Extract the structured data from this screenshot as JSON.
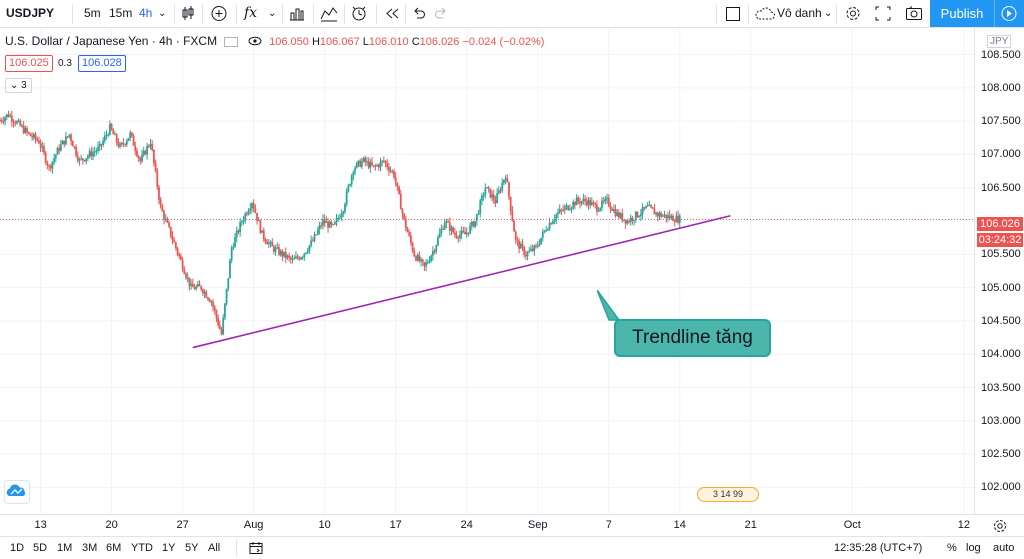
{
  "toolbar": {
    "symbol": "USDJPY",
    "timeframes": [
      "5m",
      "15m",
      "4h"
    ],
    "active_timeframe": "4h",
    "fx_label": "fx",
    "layout_name": "Vô danh",
    "publish_label": "Publish"
  },
  "legend": {
    "title": "U.S. Dollar / Japanese Yen · 4h · FXCM",
    "open_value": "106.050",
    "high_label": "H",
    "high_value": "106.067",
    "low_label": "L",
    "low_value": "106.010",
    "close_label": "C",
    "close_value": "106.026",
    "change": "−0.024 (−0.02%)",
    "bid": "106.025",
    "spread": "0.3",
    "ask": "106.028",
    "indicator_count": "3"
  },
  "price_axis": {
    "currency": "JPY",
    "labels": [
      "108.500",
      "108.000",
      "107.500",
      "107.000",
      "106.500",
      "105.500",
      "105.000",
      "104.500",
      "104.000",
      "103.500",
      "103.000",
      "102.500",
      "102.000"
    ],
    "current_price": "106.026",
    "countdown": "03:24:32"
  },
  "time_axis": {
    "labels": [
      "13",
      "20",
      "27",
      "Aug",
      "10",
      "17",
      "24",
      "Sep",
      "7",
      "14",
      "21",
      "Oct",
      "12"
    ]
  },
  "annotation": {
    "text": "Trendline tăng"
  },
  "news_badge": {
    "text": "3 14  99"
  },
  "bottom_bar": {
    "ranges": [
      "1D",
      "5D",
      "1M",
      "3M",
      "6M",
      "YTD",
      "1Y",
      "5Y",
      "All"
    ],
    "clock": "12:35:28 (UTC+7)",
    "percent_label": "%",
    "log_label": "log",
    "auto_label": "auto"
  },
  "colors": {
    "up": "#26a69a",
    "down": "#ef5350",
    "trendline": "#9c27b0",
    "accent": "#2196f3"
  },
  "chart_data": {
    "type": "candlestick",
    "ylim": [
      101.6,
      108.9
    ],
    "x_range": [
      "2020-07-09",
      "2020-10-13"
    ],
    "trendline": [
      {
        "date": "2020-07-28",
        "price": 104.1
      },
      {
        "date": "2020-09-19",
        "price": 106.08
      }
    ],
    "path_points": [
      {
        "date": "2020-07-09",
        "price": 107.5
      },
      {
        "date": "2020-07-10",
        "price": 107.6
      },
      {
        "date": "2020-07-12",
        "price": 107.3
      },
      {
        "date": "2020-07-13",
        "price": 107.2
      },
      {
        "date": "2020-07-14",
        "price": 106.8
      },
      {
        "date": "2020-07-15",
        "price": 107.1
      },
      {
        "date": "2020-07-16",
        "price": 107.3
      },
      {
        "date": "2020-07-17",
        "price": 106.9
      },
      {
        "date": "2020-07-19",
        "price": 107.1
      },
      {
        "date": "2020-07-20",
        "price": 107.4
      },
      {
        "date": "2020-07-21",
        "price": 107.1
      },
      {
        "date": "2020-07-22",
        "price": 107.3
      },
      {
        "date": "2020-07-23",
        "price": 106.9
      },
      {
        "date": "2020-07-24",
        "price": 107.2
      },
      {
        "date": "2020-07-25",
        "price": 106.2
      },
      {
        "date": "2020-07-26",
        "price": 105.8
      },
      {
        "date": "2020-07-27",
        "price": 105.4
      },
      {
        "date": "2020-07-28",
        "price": 105.0
      },
      {
        "date": "2020-07-29",
        "price": 105.0
      },
      {
        "date": "2020-07-30",
        "price": 104.8
      },
      {
        "date": "2020-07-31",
        "price": 104.3
      },
      {
        "date": "2020-08-01",
        "price": 105.6
      },
      {
        "date": "2020-08-02",
        "price": 106.0
      },
      {
        "date": "2020-08-03",
        "price": 106.3
      },
      {
        "date": "2020-08-04",
        "price": 105.8
      },
      {
        "date": "2020-08-05",
        "price": 105.6
      },
      {
        "date": "2020-08-06",
        "price": 105.5
      },
      {
        "date": "2020-08-07",
        "price": 105.4
      },
      {
        "date": "2020-08-08",
        "price": 105.5
      },
      {
        "date": "2020-08-09",
        "price": 105.7
      },
      {
        "date": "2020-08-10",
        "price": 106.0
      },
      {
        "date": "2020-08-11",
        "price": 105.9
      },
      {
        "date": "2020-08-12",
        "price": 106.2
      },
      {
        "date": "2020-08-13",
        "price": 106.8
      },
      {
        "date": "2020-08-14",
        "price": 106.9
      },
      {
        "date": "2020-08-15",
        "price": 106.8
      },
      {
        "date": "2020-08-16",
        "price": 106.9
      },
      {
        "date": "2020-08-17",
        "price": 106.7
      },
      {
        "date": "2020-08-18",
        "price": 106.0
      },
      {
        "date": "2020-08-19",
        "price": 105.5
      },
      {
        "date": "2020-08-20",
        "price": 105.3
      },
      {
        "date": "2020-08-21",
        "price": 105.6
      },
      {
        "date": "2020-08-22",
        "price": 106.0
      },
      {
        "date": "2020-08-23",
        "price": 105.8
      },
      {
        "date": "2020-08-24",
        "price": 105.8
      },
      {
        "date": "2020-08-25",
        "price": 106.0
      },
      {
        "date": "2020-08-26",
        "price": 106.5
      },
      {
        "date": "2020-08-27",
        "price": 106.3
      },
      {
        "date": "2020-08-28",
        "price": 106.7
      },
      {
        "date": "2020-08-29",
        "price": 105.7
      },
      {
        "date": "2020-08-30",
        "price": 105.5
      },
      {
        "date": "2020-08-31",
        "price": 105.6
      },
      {
        "date": "2020-09-01",
        "price": 105.9
      },
      {
        "date": "2020-09-02",
        "price": 106.1
      },
      {
        "date": "2020-09-03",
        "price": 106.2
      },
      {
        "date": "2020-09-04",
        "price": 106.3
      },
      {
        "date": "2020-09-05",
        "price": 106.3
      },
      {
        "date": "2020-09-06",
        "price": 106.2
      },
      {
        "date": "2020-09-07",
        "price": 106.3
      },
      {
        "date": "2020-09-08",
        "price": 106.1
      },
      {
        "date": "2020-09-09",
        "price": 106.0
      },
      {
        "date": "2020-09-10",
        "price": 106.1
      },
      {
        "date": "2020-09-11",
        "price": 106.2
      },
      {
        "date": "2020-09-12",
        "price": 106.1
      },
      {
        "date": "2020-09-14",
        "price": 106.03
      }
    ]
  }
}
